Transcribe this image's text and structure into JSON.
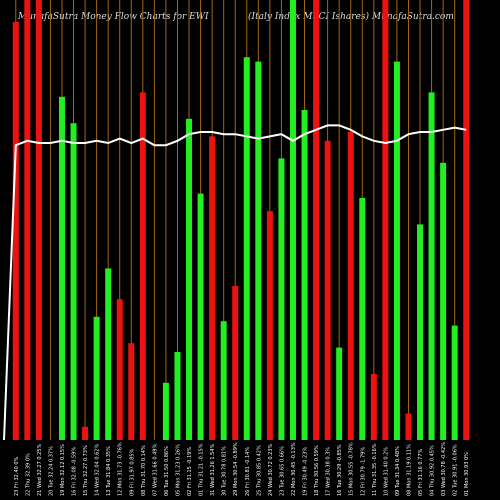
{
  "header": {
    "left": "MunafaSutra  Money Flow  Charts for EWI",
    "right": "(Italy Index MSCI Ishares) MunafaSutra.com"
  },
  "colors": {
    "up": "#22ee22",
    "down": "#ee1111",
    "grid": "#a0661a",
    "line": "#ffffff",
    "background": "#000000",
    "label": "#ffffff"
  },
  "chart_data": {
    "type": "bar",
    "title": "MunafaSutra  Money Flow  Charts for EWI",
    "subtitle": "(Italy Index MSCI Ishares) MunafaSutra.com",
    "categories": [
      "23 Fri 32.40 0%",
      "22 Thu 32.39 0%",
      "21 Wed 32.27 0.25%",
      "20 Tue 32.24 0.37%",
      "19 Mon 32.12 0.15%",
      "16 Fri 32.08 -0.59%",
      "15 Thu 32.27 0.73%",
      "14 Wed 32.04 0.62%",
      "13 Tue 31.84 0.35%",
      "12 Mon 31.73 -0.76%",
      "09 Fri 31.97 0.85%",
      "08 Thu 31.70 0.14%",
      "07 Wed 31.66 0.49%",
      "06 Tue 31.50 0.86%",
      "05 Mon 31.23 0.26%",
      "02 Fri 31.15 -0.19%",
      "01 Thu 31.21 -0.15%",
      "31 Wed 31.26 1.54%",
      "30 Tue 30.78 0.81%",
      "29 Mon 30.54 -0.89%",
      "26 Fri 30.81 -0.14%",
      "25 Thu 30.85 0.42%",
      "24 Wed 30.72 0.23%",
      "23 Tue 30.65 0.66%",
      "22 Mon 30.45 -0.13%",
      "19 Fri 30.49 -0.23%",
      "18 Thu 30.56 0.59%",
      "17 Wed 30.38 0.3%",
      "16 Tue 30.29 -0.85%",
      "15 Mon 30.55 -0.78%",
      "12 Fri 30.79 -1.79%",
      "11 Thu 31.35 -0.16%",
      "10 Wed 31.40 0.2%",
      "09 Tue 31.34 0.48%",
      "08 Mon 31.19 0.11%",
      "05 Fri 31.16 0.77%",
      "04 Thu 30.92 0.45%",
      "03 Wed 30.78 -0.42%",
      "02 Tue 30.91 -0.06%",
      "01 Mon 30.93 0%"
    ],
    "values": [
      95,
      100,
      100,
      0,
      78,
      72,
      3,
      28,
      39,
      32,
      22,
      79,
      0,
      13,
      20,
      73,
      56,
      69,
      27,
      35,
      87,
      86,
      52,
      64,
      100,
      75,
      100,
      68,
      21,
      70,
      55,
      15,
      100,
      86,
      6,
      49,
      79,
      63,
      26,
      100
    ],
    "directions": [
      "down",
      "down",
      "down",
      "down",
      "up",
      "up",
      "down",
      "up",
      "up",
      "down",
      "down",
      "down",
      "down",
      "up",
      "up",
      "up",
      "up",
      "down",
      "up",
      "down",
      "up",
      "up",
      "down",
      "up",
      "up",
      "up",
      "down",
      "down",
      "up",
      "down",
      "up",
      "down",
      "down",
      "up",
      "down",
      "up",
      "up",
      "up",
      "up",
      "down"
    ],
    "line": [
      67,
      68,
      67.5,
      67.5,
      68,
      67.5,
      67.5,
      68,
      67.5,
      68.5,
      67.5,
      68.5,
      67,
      67,
      68,
      69.5,
      70,
      70,
      69.5,
      69.5,
      69,
      68.5,
      69,
      69.5,
      68,
      69.5,
      70.5,
      71.5,
      71.5,
      70.5,
      69,
      68,
      67.5,
      68,
      69.5,
      70,
      70,
      70.5,
      71,
      70.5
    ],
    "ylim": [
      0,
      100
    ],
    "grid": true
  }
}
